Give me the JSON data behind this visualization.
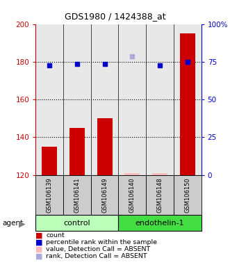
{
  "title": "GDS1980 / 1424388_at",
  "samples": [
    "GSM106139",
    "GSM106141",
    "GSM106149",
    "GSM106140",
    "GSM106148",
    "GSM106150"
  ],
  "groups": [
    {
      "label": "control",
      "indices": [
        0,
        1,
        2
      ],
      "color": "#bbffbb"
    },
    {
      "label": "endothelin-1",
      "indices": [
        3,
        4,
        5
      ],
      "color": "#44dd44"
    }
  ],
  "bar_values": [
    135,
    145,
    150,
    121,
    121,
    195
  ],
  "bar_color": "#cc0000",
  "dot_values": [
    178,
    179,
    179,
    null,
    178,
    180
  ],
  "dot_color": "#0000cc",
  "dot_absent_values": [
    null,
    null,
    null,
    183,
    null,
    null
  ],
  "dot_absent_color": "#aaaadd",
  "bar_absent_indices": [
    3,
    4
  ],
  "bar_absent_color": "#ffbbbb",
  "ylim_left": [
    120,
    200
  ],
  "ylim_right": [
    0,
    100
  ],
  "yticks_left": [
    120,
    140,
    160,
    180,
    200
  ],
  "yticks_right": [
    0,
    25,
    50,
    75,
    100
  ],
  "ytick_labels_right": [
    "0",
    "25",
    "50",
    "75",
    "100%"
  ],
  "legend_items": [
    {
      "color": "#cc0000",
      "label": "count"
    },
    {
      "color": "#0000cc",
      "label": "percentile rank within the sample"
    },
    {
      "color": "#ffbbbb",
      "label": "value, Detection Call = ABSENT"
    },
    {
      "color": "#aaaadd",
      "label": "rank, Detection Call = ABSENT"
    }
  ],
  "agent_label": "agent",
  "background_color": "#ffffff"
}
